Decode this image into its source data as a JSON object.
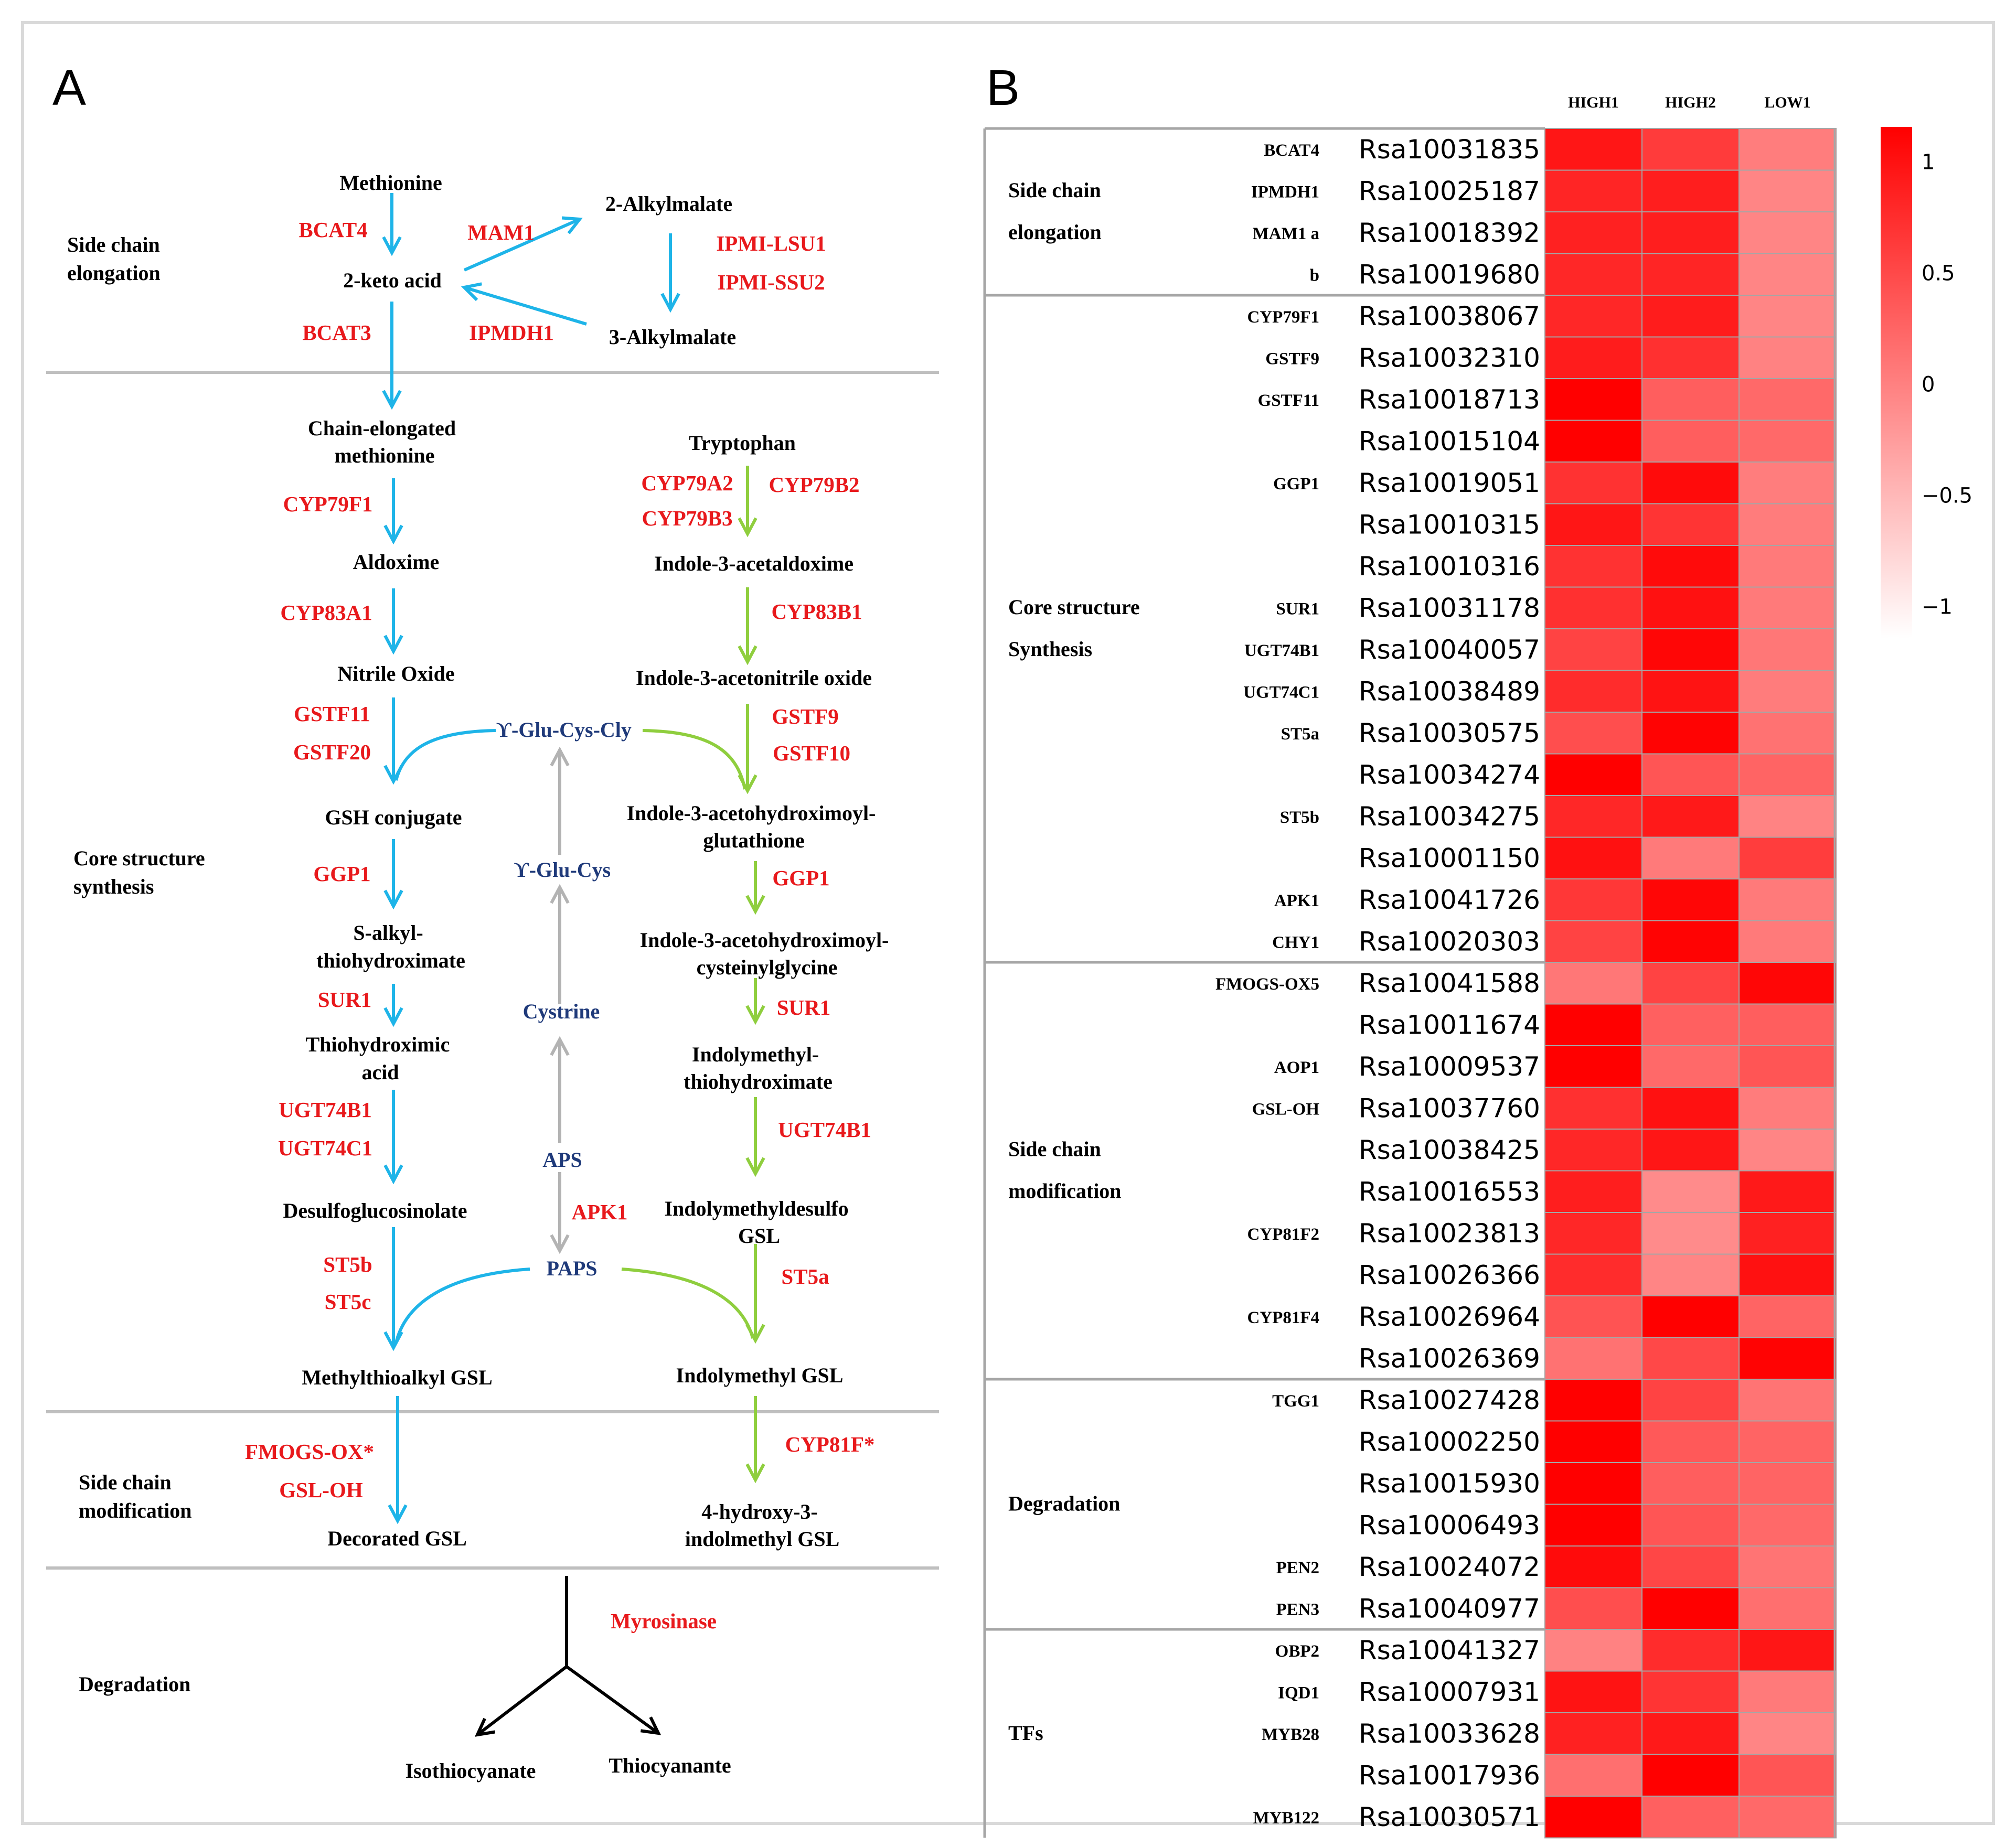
{
  "colors": {
    "enzyme": "#e8191c",
    "cofactor": "#1f3a7a",
    "blue_arrow": "#1eb4e8",
    "green_arrow": "#8fce3e",
    "gray_arrow": "#b3b3b3",
    "divider": "#bfbfbf",
    "heat_max": "#ff0000",
    "heat_min": "#ffffff"
  },
  "panel_a": {
    "label": "A",
    "sections": [
      {
        "lines": [
          "Side chain",
          "elongation"
        ]
      },
      {
        "lines": [
          "Core structure",
          "synthesis"
        ]
      },
      {
        "lines": [
          "Side chain",
          "modification"
        ]
      },
      {
        "lines": [
          "Degradation"
        ]
      }
    ],
    "compounds": {
      "methionine": "Methionine",
      "keto_acid": "2-keto acid",
      "alkylmalate2": "2-Alkylmalate",
      "alkylmalate3": "3-Alkylmalate",
      "chain_met_1": "Chain-elongated",
      "chain_met_2": "methionine",
      "aldoxime": "Aldoxime",
      "nitrile_oxide": "Nitrile Oxide",
      "gsh_conjugate": "GSH conjugate",
      "s_alkyl_1": "S-alkyl-",
      "s_alkyl_2": "thiohydroximate",
      "thio_acid_1": "Thiohydroximic",
      "thio_acid_2": "acid",
      "desulfo": "Desulfoglucosinolate",
      "methylthio": "Methylthioalkyl GSL",
      "decorated": "Decorated GSL",
      "tryptophan": "Tryptophan",
      "i3_acetaldoxime": "Indole-3-acetaldoxime",
      "i3_nitrile": "Indole-3-acetonitrile oxide",
      "i3_gluta_1": "Indole-3-acetohydroximoyl-",
      "i3_gluta_2": "glutathione",
      "i3_cys_1": "Indole-3-acetohydroximoyl-",
      "i3_cys_2": "cysteinylglycine",
      "indolyl_thio_1": "Indolymethyl-",
      "indolyl_thio_2": "thiohydroximate",
      "indolyl_desulfo_1": "Indolymethyldesulfo",
      "indolyl_desulfo_2": "GSL",
      "indolyl_gsl": "Indolymethyl GSL",
      "hydroxy_1": "4-hydroxy-3-",
      "hydroxy_2": "indolmethyl GSL",
      "isothio": "Isothiocyanate",
      "thiocyan": "Thiocyanante"
    },
    "cofactors": {
      "glu_cys_gly": "ϒ-Glu-Cys-Cly",
      "glu_cys": "ϒ-Glu-Cys",
      "cystrine": "Cystrine",
      "aps": "APS",
      "paps": "PAPS"
    },
    "enzymes": {
      "bcat4": "BCAT4",
      "bcat3": "BCAT3",
      "mam1": "MAM1",
      "ipmdh1": "IPMDH1",
      "ipmi_lsu1": "IPMI-LSU1",
      "ipmi_ssu2": "IPMI-SSU2",
      "cyp79f1": "CYP79F1",
      "cyp83a1": "CYP83A1",
      "gstf11": "GSTF11",
      "gstf20": "GSTF20",
      "ggp1_l": "GGP1",
      "sur1_l": "SUR1",
      "ugt74b1_l": "UGT74B1",
      "ugt74c1": "UGT74C1",
      "st5b": "ST5b",
      "st5c": "ST5c",
      "fmogs": "FMOGS-OX*",
      "gsl_oh": "GSL-OH",
      "cyp79a2": "CYP79A2",
      "cyp79b3": "CYP79B3",
      "cyp79b2": "CYP79B2",
      "cyp83b1": "CYP83B1",
      "gstf9": "GSTF9",
      "gstf10": "GSTF10",
      "ggp1_r": "GGP1",
      "sur1_r": "SUR1",
      "ugt74b1_r": "UGT74B1",
      "st5a": "ST5a",
      "cyp81f": "CYP81F*",
      "apk1": "APK1",
      "myrosinase": "Myrosinase"
    }
  },
  "panel_b": {
    "label": "B",
    "columns": [
      "HIGH1",
      "HIGH2",
      "LOW1"
    ],
    "colorbar": {
      "ticks": [
        "1",
        "0.5",
        "0",
        "−0.5",
        "−1"
      ],
      "range": [
        -1.15,
        1.15
      ]
    },
    "groups": [
      {
        "lines": [
          "Side chain",
          "elongation"
        ]
      },
      {
        "lines": [
          "Core structure",
          "Synthesis"
        ]
      },
      {
        "lines": [
          "Side chain",
          "modification"
        ]
      },
      {
        "lines": [
          "Degradation"
        ]
      },
      {
        "lines": [
          "TFs"
        ]
      }
    ],
    "rows": [
      {
        "gene": "BCAT4",
        "id": "Rsa10031835",
        "v": [
          0.95,
          0.62,
          0.02
        ]
      },
      {
        "gene": "IPMDH1",
        "id": "Rsa10025187",
        "v": [
          0.82,
          0.88,
          -0.05
        ]
      },
      {
        "gene": "MAM1 a",
        "id": "Rsa10018392",
        "v": [
          0.85,
          0.88,
          -0.05
        ]
      },
      {
        "gene": "b",
        "id": "Rsa10019680",
        "v": [
          0.8,
          0.82,
          -0.05
        ]
      },
      {
        "gene": "CYP79F1",
        "id": "Rsa10038067",
        "v": [
          0.8,
          0.9,
          -0.05
        ]
      },
      {
        "gene": "GSTF9",
        "id": "Rsa10032310",
        "v": [
          0.9,
          0.72,
          -0.02
        ]
      },
      {
        "gene": "GSTF11",
        "id": "Rsa10018713",
        "v": [
          1.15,
          0.3,
          0.2
        ]
      },
      {
        "gene": "",
        "id": "Rsa10015104",
        "v": [
          1.15,
          0.3,
          0.2
        ]
      },
      {
        "gene": "GGP1",
        "id": "Rsa10019051",
        "v": [
          0.7,
          1.05,
          0.02
        ]
      },
      {
        "gene": "",
        "id": "Rsa10010315",
        "v": [
          0.95,
          0.68,
          0.03
        ]
      },
      {
        "gene": "",
        "id": "Rsa10010316",
        "v": [
          0.7,
          1.05,
          0.05
        ]
      },
      {
        "gene": "SUR1",
        "id": "Rsa10031178",
        "v": [
          0.72,
          1.0,
          0.05
        ]
      },
      {
        "gene": "UGT74B1",
        "id": "Rsa10040057",
        "v": [
          0.55,
          1.1,
          0.08
        ]
      },
      {
        "gene": "UGT74C1",
        "id": "Rsa10038489",
        "v": [
          0.75,
          0.98,
          0.03
        ]
      },
      {
        "gene": "ST5a",
        "id": "Rsa10030575",
        "v": [
          0.45,
          1.12,
          0.12
        ]
      },
      {
        "gene": "",
        "id": "Rsa10034274",
        "v": [
          1.15,
          0.38,
          0.25
        ]
      },
      {
        "gene": "ST5b",
        "id": "Rsa10034275",
        "v": [
          0.8,
          0.92,
          -0.03
        ]
      },
      {
        "gene": "",
        "id": "Rsa10001150",
        "v": [
          1.0,
          0.05,
          0.6
        ]
      },
      {
        "gene": "APK1",
        "id": "Rsa10041726",
        "v": [
          0.65,
          1.1,
          0.05
        ]
      },
      {
        "gene": "CHY1",
        "id": "Rsa10020303",
        "v": [
          0.55,
          1.12,
          0.05
        ]
      },
      {
        "gene": "FMOGS-OX5",
        "id": "Rsa10041588",
        "v": [
          0.08,
          0.55,
          1.1
        ]
      },
      {
        "gene": "",
        "id": "Rsa10011674",
        "v": [
          1.15,
          0.28,
          0.3
        ]
      },
      {
        "gene": "AOP1",
        "id": "Rsa10009537",
        "v": [
          1.15,
          0.2,
          0.38
        ]
      },
      {
        "gene": "GSL-OH",
        "id": "Rsa10037760",
        "v": [
          0.72,
          1.0,
          0.03
        ]
      },
      {
        "gene": "",
        "id": "Rsa10038425",
        "v": [
          0.8,
          0.95,
          -0.05
        ]
      },
      {
        "gene": "",
        "id": "Rsa10016553",
        "v": [
          0.88,
          -0.1,
          0.92
        ]
      },
      {
        "gene": "CYP81F2",
        "id": "Rsa10023813",
        "v": [
          0.8,
          -0.1,
          0.85
        ]
      },
      {
        "gene": "",
        "id": "Rsa10026366",
        "v": [
          0.75,
          -0.05,
          1.0
        ]
      },
      {
        "gene": "CYP81F4",
        "id": "Rsa10026964",
        "v": [
          0.4,
          1.15,
          0.25
        ]
      },
      {
        "gene": "",
        "id": "Rsa10026369",
        "v": [
          0.12,
          0.5,
          1.12
        ]
      },
      {
        "gene": "TGG1",
        "id": "Rsa10027428",
        "v": [
          1.15,
          0.55,
          0.1
        ]
      },
      {
        "gene": "",
        "id": "Rsa10002250",
        "v": [
          1.15,
          0.35,
          0.25
        ]
      },
      {
        "gene": "",
        "id": "Rsa10015930",
        "v": [
          1.15,
          0.3,
          0.25
        ]
      },
      {
        "gene": "",
        "id": "Rsa10006493",
        "v": [
          1.15,
          0.38,
          0.2
        ]
      },
      {
        "gene": "PEN2",
        "id": "Rsa10024072",
        "v": [
          1.05,
          0.52,
          0.1
        ]
      },
      {
        "gene": "PEN3",
        "id": "Rsa10040977",
        "v": [
          0.45,
          1.15,
          0.15
        ]
      },
      {
        "gene": "OBP2",
        "id": "Rsa10041327",
        "v": [
          -0.02,
          0.75,
          0.95
        ]
      },
      {
        "gene": "IQD1",
        "id": "Rsa10007931",
        "v": [
          0.98,
          0.68,
          0.05
        ]
      },
      {
        "gene": "MYB28",
        "id": "Rsa10033628",
        "v": [
          0.85,
          0.92,
          -0.05
        ]
      },
      {
        "gene": "",
        "id": "Rsa10017936",
        "v": [
          0.15,
          1.15,
          0.38
        ]
      },
      {
        "gene": "MYB122",
        "id": "Rsa10030571",
        "v": [
          1.15,
          0.28,
          0.2
        ]
      }
    ]
  }
}
